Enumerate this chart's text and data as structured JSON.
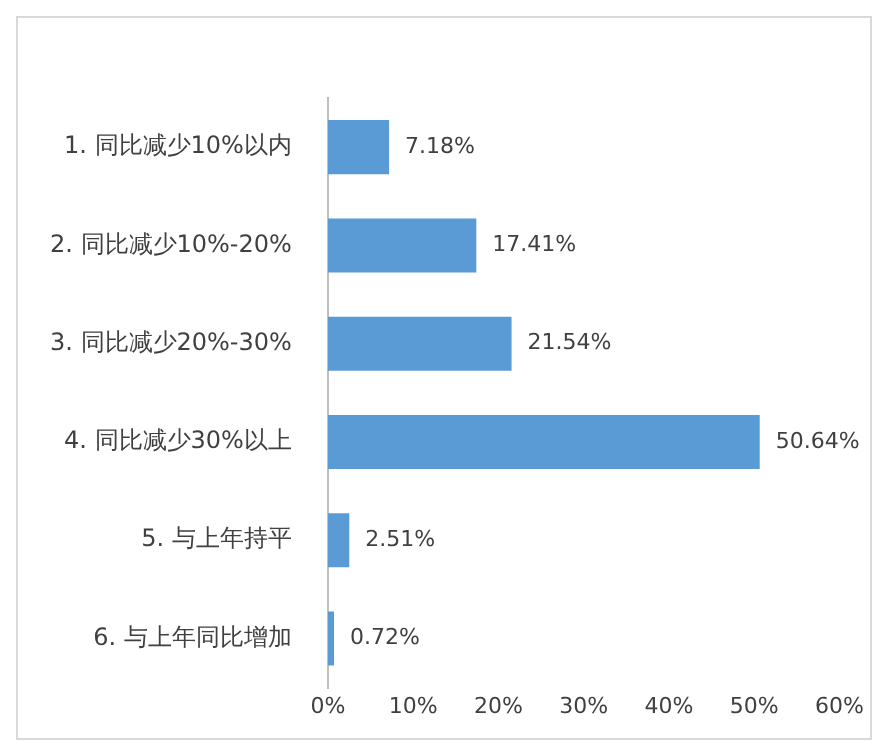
{
  "chart_data": {
    "type": "bar",
    "orientation": "horizontal",
    "categories": [
      "1. 同比减少10%以内",
      "2. 同比减少10%-20%",
      "3. 同比减少20%-30%",
      "4. 同比减少30%以上",
      "5. 与上年持平",
      "6. 与上年同比增加"
    ],
    "values": [
      7.18,
      17.41,
      21.54,
      50.64,
      2.51,
      0.72
    ],
    "value_labels": [
      "7.18%",
      "17.41%",
      "21.54%",
      "50.64%",
      "2.51%",
      "0.72%"
    ],
    "color": "#5b9bd5",
    "xlim": [
      0,
      60
    ],
    "xticks": [
      {
        "value": 0,
        "label": "0%"
      },
      {
        "value": 10,
        "label": "10%"
      },
      {
        "value": 20,
        "label": "20%"
      },
      {
        "value": 30,
        "label": "30%"
      },
      {
        "value": 40,
        "label": "40%"
      },
      {
        "value": 50,
        "label": "50%"
      },
      {
        "value": 60,
        "label": "60%"
      }
    ],
    "grid": false,
    "legend": false
  }
}
